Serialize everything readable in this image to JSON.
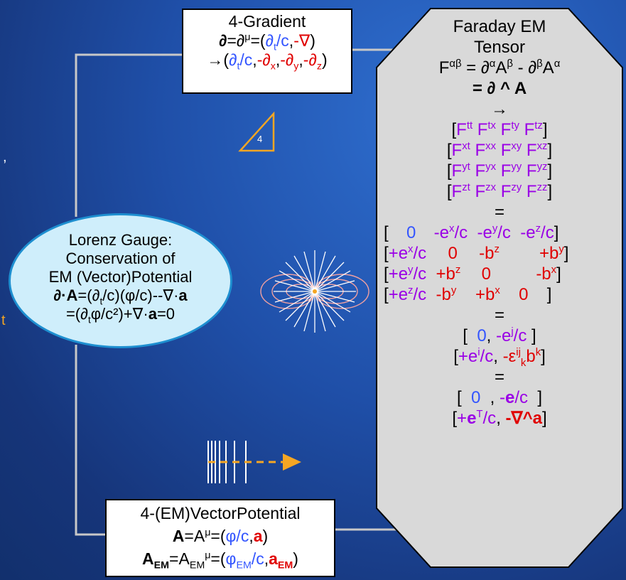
{
  "gradient_box": {
    "title": "4-Gradient",
    "l2_a": "∂",
    "l2_b": "=∂",
    "l2_mu": "μ",
    "l2_c": "=(",
    "l2_d": "∂",
    "l2_t": "t",
    "l2_e": "/c",
    "l2_f": ",",
    "l2_g": "-∇",
    "l2_h": ")",
    "l3_a": "→(",
    "l3_b": "∂",
    "l3_t": "t",
    "l3_c": "/c",
    "l3_d": ",",
    "l3_e": "-∂",
    "l3_x": "x",
    "l3_f": ",",
    "l3_g": "-∂",
    "l3_y": "y",
    "l3_h": ",",
    "l3_i": "-∂",
    "l3_z": "z",
    "l3_j": ")"
  },
  "rank_triangle": {
    "label": "4",
    "color": "#f5a623"
  },
  "lorenz_ellipse": {
    "line1": "Lorenz Gauge:",
    "line2": "Conservation of",
    "line3": "EM (Vector)Potential",
    "l4_a": "∂·",
    "l4_b": "A",
    "l4_c": "=(∂",
    "l4_t": "t",
    "l4_d": "/c)(φ/c)--∇·",
    "l4_e": "a",
    "l5_a": "=(∂",
    "l5_t": "t",
    "l5_b": "φ/c²)+∇·",
    "l5_c": "a",
    "l5_d": "=0",
    "fill": "#cfeefb"
  },
  "left_edge": {
    "mark1": ",",
    "mark2": "t"
  },
  "potential_box": {
    "title": "4-(EM)VectorPotential",
    "l2_a": "A",
    "l2_b": "=A",
    "l2_mu": "μ",
    "l2_c": "=(",
    "l2_d": "φ/c",
    "l2_e": ",",
    "l2_f": "a",
    "l2_g": ")",
    "l3_a": "A",
    "l3_em1": "EM",
    "l3_b": "=A",
    "l3_em2": "EM",
    "l3_mu": "μ",
    "l3_c": "=(",
    "l3_d": "φ",
    "l3_em3": "EM",
    "l3_e": "/c",
    "l3_f": ",",
    "l3_g": "a",
    "l3_em4": "EM",
    "l3_h": ")"
  },
  "faraday": {
    "title1": "Faraday EM",
    "title2": "Tensor",
    "def_a": "F",
    "def_ab": "αβ",
    "def_b": " = ∂",
    "def_a1": "α",
    "def_c": "A",
    "def_b1": "β",
    "def_d": " - ∂",
    "def_b2": "β",
    "def_e": "A",
    "def_a2": "α",
    "wedge": "= ∂ ^ A",
    "arrow": "→",
    "eq": "=",
    "comp_rows": [
      [
        "tt",
        "tx",
        "ty",
        "tz"
      ],
      [
        "xt",
        "xx",
        "xy",
        "xz"
      ],
      [
        "yt",
        "yx",
        "yy",
        "yz"
      ],
      [
        "zt",
        "zx",
        "zy",
        "zz"
      ]
    ],
    "F": "F",
    "m_r1": [
      "0",
      "-e",
      "x",
      "/c",
      "-e",
      "y",
      "/c",
      "-e",
      "z",
      "/c"
    ],
    "m_r2": [
      "+e",
      "x",
      "/c",
      "0",
      "-b",
      "z",
      "+b",
      "y"
    ],
    "m_r3": [
      "+e",
      "y",
      "/c",
      "+b",
      "z",
      "0",
      "-b",
      "x"
    ],
    "m_r4": [
      "+e",
      "z",
      "/c",
      "-b",
      "y",
      "+b",
      "x",
      "0"
    ],
    "c_r1": [
      "0",
      ", ",
      "-e",
      "j",
      "/c"
    ],
    "c_r2": [
      "+e",
      "i",
      "/c",
      ", ",
      "-ε",
      "ij",
      "k",
      "b",
      "k"
    ],
    "d_r1": [
      "0",
      ", ",
      "-",
      "e",
      "/c"
    ],
    "d_r2": [
      "+",
      "e",
      "T",
      "/c",
      ", ",
      "-∇^",
      "a"
    ]
  },
  "colors": {
    "blue": "#3355ff",
    "red": "#e00000",
    "purple": "#9a00e6",
    "orange": "#f5a623"
  }
}
